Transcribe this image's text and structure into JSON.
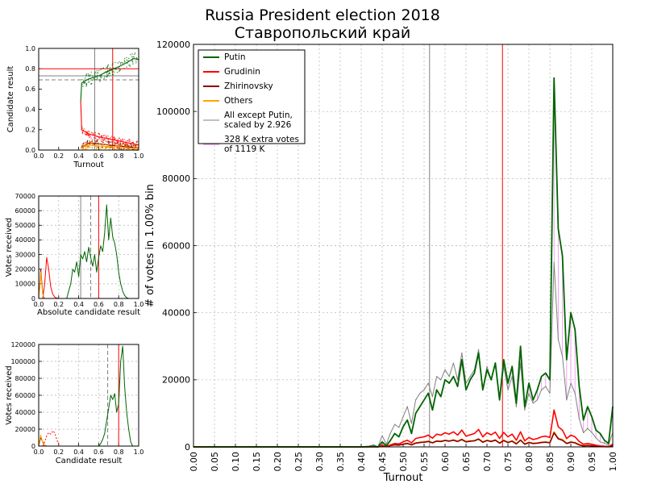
{
  "title": "Russia President election 2018",
  "subtitle": "Ставропольский край",
  "colors": {
    "putin": "#006400",
    "grudinin": "#ff0000",
    "zhirinovsky": "#8b0000",
    "others": "#ffa500",
    "scaled": "#808080",
    "extra": "#ee82ee",
    "marker_gray": "#808080",
    "marker_red": "#ff0000",
    "grid": "#b0b0b0"
  },
  "chart_data": [
    {
      "id": "main",
      "type": "line",
      "xlabel": "Turnout",
      "ylabel": "# of votes in 1.00% bin",
      "xlim": [
        0,
        1
      ],
      "ylim": [
        0,
        120000
      ],
      "xticks": [
        "0.00",
        "0.05",
        "0.10",
        "0.15",
        "0.20",
        "0.25",
        "0.30",
        "0.35",
        "0.40",
        "0.45",
        "0.50",
        "0.55",
        "0.60",
        "0.65",
        "0.70",
        "0.75",
        "0.80",
        "0.85",
        "0.90",
        "0.95",
        "1.00"
      ],
      "yticks": [
        "0",
        "20000",
        "40000",
        "60000",
        "80000",
        "100000",
        "120000"
      ],
      "grid": true,
      "legend_position": "top-left",
      "vlines": [
        {
          "x": 0.563,
          "color": "gray"
        },
        {
          "x": 0.737,
          "color": "red"
        }
      ],
      "x": [
        0.0,
        0.05,
        0.1,
        0.15,
        0.2,
        0.25,
        0.3,
        0.35,
        0.37,
        0.4,
        0.42,
        0.43,
        0.44,
        0.45,
        0.46,
        0.47,
        0.48,
        0.49,
        0.5,
        0.51,
        0.52,
        0.53,
        0.54,
        0.55,
        0.56,
        0.57,
        0.58,
        0.59,
        0.6,
        0.61,
        0.62,
        0.63,
        0.64,
        0.65,
        0.66,
        0.67,
        0.68,
        0.69,
        0.7,
        0.71,
        0.72,
        0.73,
        0.74,
        0.75,
        0.76,
        0.77,
        0.78,
        0.79,
        0.8,
        0.81,
        0.82,
        0.83,
        0.84,
        0.85,
        0.86,
        0.87,
        0.88,
        0.89,
        0.9,
        0.91,
        0.92,
        0.93,
        0.94,
        0.95,
        0.96,
        0.97,
        0.98,
        0.99,
        1.0
      ],
      "series": [
        {
          "name": "Putin",
          "key": "putin",
          "values": [
            0,
            0,
            0,
            0,
            0,
            0,
            0,
            0,
            0,
            0,
            100,
            200,
            0,
            1500,
            300,
            2000,
            4000,
            3000,
            6000,
            8000,
            4000,
            10000,
            12000,
            14000,
            16000,
            11000,
            17000,
            15000,
            20000,
            19000,
            21000,
            18000,
            26000,
            17000,
            20000,
            22000,
            28000,
            17000,
            23000,
            20000,
            25000,
            14000,
            26000,
            19000,
            24000,
            13000,
            30000,
            12000,
            19000,
            14000,
            17000,
            21000,
            22000,
            20000,
            110000,
            65000,
            57000,
            26000,
            40000,
            35000,
            18000,
            8000,
            12000,
            9000,
            5000,
            4000,
            2000,
            1000,
            12000
          ]
        },
        {
          "name": "Grudinin",
          "key": "grudinin",
          "values": [
            0,
            0,
            0,
            0,
            0,
            0,
            0,
            0,
            0,
            0,
            50,
            100,
            0,
            500,
            100,
            600,
            1000,
            900,
            1500,
            2000,
            1200,
            2500,
            2800,
            3000,
            3500,
            2600,
            3800,
            3500,
            4200,
            3800,
            4500,
            3500,
            5000,
            3200,
            3600,
            4000,
            5200,
            3000,
            4200,
            3600,
            4400,
            2500,
            4300,
            3000,
            3800,
            2000,
            4500,
            1800,
            2800,
            2200,
            2500,
            3000,
            3200,
            2800,
            11000,
            6000,
            5000,
            2500,
            3500,
            3000,
            1600,
            800,
            1000,
            800,
            500,
            300,
            200,
            100,
            800
          ]
        },
        {
          "name": "Zhirinovsky",
          "key": "zhirinovsky",
          "values": [
            0,
            0,
            0,
            0,
            0,
            0,
            0,
            0,
            0,
            0,
            20,
            50,
            0,
            300,
            80,
            400,
            600,
            500,
            800,
            1000,
            600,
            1100,
            1300,
            1400,
            1600,
            1200,
            1700,
            1600,
            1900,
            1700,
            2000,
            1600,
            2200,
            1500,
            1700,
            1800,
            2300,
            1400,
            1900,
            1600,
            2000,
            1100,
            1900,
            1300,
            1700,
            900,
            2000,
            800,
            1300,
            1000,
            1100,
            1300,
            1400,
            1200,
            4200,
            2400,
            2000,
            1000,
            1400,
            1200,
            600,
            300,
            400,
            300,
            200,
            100,
            80,
            40,
            300
          ]
        },
        {
          "name": "Others",
          "key": "others",
          "values": [
            0,
            0,
            0,
            0,
            0,
            0,
            0,
            0,
            0,
            0,
            20,
            60,
            0,
            350,
            90,
            450,
            700,
            600,
            900,
            1100,
            700,
            1200,
            1400,
            1500,
            1700,
            1300,
            1800,
            1700,
            2000,
            1800,
            2100,
            1700,
            2300,
            1600,
            1800,
            1900,
            2400,
            1500,
            2000,
            1700,
            2100,
            1200,
            2000,
            1400,
            1800,
            1000,
            2100,
            900,
            1400,
            1100,
            1200,
            1400,
            1500,
            1300,
            4500,
            2600,
            2200,
            1100,
            1500,
            1300,
            700,
            350,
            450,
            350,
            220,
            120,
            90,
            50,
            350
          ]
        },
        {
          "name": "All except Putin, scaled by 2.926",
          "key": "scaled",
          "values": [
            0,
            0,
            0,
            0,
            0,
            0,
            0,
            0,
            0,
            0,
            270,
            620,
            0,
            3350,
            790,
            4200,
            6700,
            5800,
            9000,
            12000,
            7000,
            14000,
            16000,
            17000,
            19000,
            15000,
            21000,
            20000,
            23000,
            21000,
            25000,
            20000,
            28000,
            19000,
            21000,
            23000,
            29000,
            17000,
            24000,
            20000,
            25000,
            14000,
            24000,
            17000,
            21000,
            12000,
            25000,
            11000,
            16000,
            13000,
            14000,
            17000,
            18000,
            16000,
            55000,
            32000,
            27000,
            14000,
            19000,
            16000,
            8400,
            4200,
            5500,
            4300,
            2700,
            1500,
            1100,
            560,
            4300
          ]
        }
      ],
      "legend": [
        {
          "key": "putin",
          "label": "Putin"
        },
        {
          "key": "grudinin",
          "label": "Grudinin"
        },
        {
          "key": "zhirinovsky",
          "label": "Zhirinovsky"
        },
        {
          "key": "others",
          "label": "Others"
        },
        {
          "key": "scaled",
          "label": "All except Putin,\nscaled by 2.926"
        },
        {
          "key": "extra",
          "label": "328 K extra votes\n of 1119 K"
        }
      ]
    },
    {
      "id": "scatter_turnout",
      "type": "scatter",
      "xlabel": "Turnout",
      "ylabel": "Candidate result",
      "xlim": [
        0,
        1
      ],
      "ylim": [
        0,
        1
      ],
      "xticks": [
        "0.0",
        "0.2",
        "0.4",
        "0.6",
        "0.8",
        "1.0"
      ],
      "yticks": [
        "0.0",
        "0.2",
        "0.4",
        "0.6",
        "0.8",
        "1.0"
      ],
      "grid": false,
      "hlines": [
        {
          "y": 0.8,
          "color": "red"
        },
        {
          "y": 0.73,
          "color": "gray",
          "dashed": false
        },
        {
          "y": 0.69,
          "color": "gray",
          "dashed": true
        }
      ],
      "vlines": [
        {
          "x": 0.56,
          "color": "gray"
        },
        {
          "x": 0.74,
          "color": "red"
        }
      ],
      "series": [
        {
          "name": "Putin",
          "key": "putin",
          "trend": [
            [
              0.42,
              0.48
            ],
            [
              0.43,
              0.66
            ],
            [
              0.5,
              0.7
            ],
            [
              0.6,
              0.73
            ],
            [
              0.7,
              0.78
            ],
            [
              0.8,
              0.82
            ],
            [
              0.88,
              0.86
            ],
            [
              0.95,
              0.9
            ],
            [
              1.0,
              0.89
            ]
          ]
        },
        {
          "name": "Grudinin",
          "key": "grudinin",
          "trend": [
            [
              0.42,
              0.48
            ],
            [
              0.43,
              0.2
            ],
            [
              0.5,
              0.16
            ],
            [
              0.6,
              0.13
            ],
            [
              0.7,
              0.11
            ],
            [
              0.8,
              0.09
            ],
            [
              0.9,
              0.07
            ],
            [
              1.0,
              0.05
            ]
          ]
        },
        {
          "name": "Zhirinovsky",
          "key": "zhirinovsky",
          "trend": [
            [
              0.42,
              0.02
            ],
            [
              0.5,
              0.07
            ],
            [
              0.6,
              0.06
            ],
            [
              0.7,
              0.05
            ],
            [
              0.8,
              0.04
            ],
            [
              0.9,
              0.03
            ],
            [
              1.0,
              0.02
            ]
          ]
        },
        {
          "name": "Others",
          "key": "others",
          "trend": [
            [
              0.42,
              0.02
            ],
            [
              0.5,
              0.05
            ],
            [
              0.6,
              0.04
            ],
            [
              0.7,
              0.035
            ],
            [
              0.8,
              0.03
            ],
            [
              0.9,
              0.02
            ],
            [
              1.0,
              0.015
            ]
          ]
        }
      ]
    },
    {
      "id": "absolute_hist",
      "type": "line",
      "xlabel": "Absolute candidate result",
      "ylabel": "Votes received",
      "xlim": [
        0,
        1
      ],
      "ylim": [
        0,
        70000
      ],
      "xticks": [
        "0.0",
        "0.2",
        "0.4",
        "0.6",
        "0.8",
        "1.0"
      ],
      "yticks": [
        "0",
        "10000",
        "20000",
        "30000",
        "40000",
        "50000",
        "60000",
        "70000"
      ],
      "grid": true,
      "vlines": [
        {
          "x": 0.42,
          "color": "gray"
        },
        {
          "x": 0.52,
          "color": "gray",
          "dashed": true
        },
        {
          "x": 0.6,
          "color": "red"
        }
      ],
      "series": [
        {
          "name": "Putin",
          "key": "putin",
          "x": [
            0.28,
            0.3,
            0.32,
            0.34,
            0.36,
            0.38,
            0.4,
            0.42,
            0.44,
            0.46,
            0.48,
            0.5,
            0.52,
            0.54,
            0.56,
            0.58,
            0.6,
            0.62,
            0.64,
            0.66,
            0.68,
            0.7,
            0.72,
            0.74,
            0.76,
            0.78,
            0.8,
            0.82,
            0.84,
            0.86,
            0.88,
            0.9
          ],
          "values": [
            0,
            5000,
            10000,
            20000,
            18000,
            25000,
            15000,
            30000,
            27000,
            32000,
            25000,
            35000,
            28000,
            22000,
            30000,
            18000,
            28000,
            36000,
            32000,
            45000,
            64000,
            40000,
            55000,
            42000,
            38000,
            30000,
            18000,
            10000,
            5000,
            2000,
            500,
            0
          ]
        },
        {
          "name": "Grudinin",
          "key": "grudinin",
          "x": [
            0.04,
            0.06,
            0.08,
            0.1,
            0.12,
            0.14,
            0.16,
            0.18,
            0.2
          ],
          "values": [
            0,
            10000,
            28000,
            20000,
            8000,
            3000,
            1000,
            300,
            0
          ]
        },
        {
          "name": "Zhirinovsky",
          "key": "zhirinovsky",
          "x": [
            0.0,
            0.01,
            0.02,
            0.03,
            0.04,
            0.05,
            0.06
          ],
          "values": [
            0,
            8000,
            20000,
            12000,
            4000,
            1000,
            0
          ]
        },
        {
          "name": "Others",
          "key": "others",
          "x": [
            0.0,
            0.01,
            0.02,
            0.03,
            0.04,
            0.05,
            0.06
          ],
          "values": [
            0,
            6000,
            18000,
            10000,
            3000,
            800,
            0
          ]
        }
      ]
    },
    {
      "id": "result_hist",
      "type": "line",
      "xlabel": "Candidate result",
      "ylabel": "Votes received",
      "xlim": [
        0,
        1
      ],
      "ylim": [
        0,
        120000
      ],
      "xticks": [
        "0.0",
        "0.2",
        "0.4",
        "0.6",
        "0.8",
        "1.0"
      ],
      "yticks": [
        "0",
        "20000",
        "40000",
        "60000",
        "80000",
        "100000",
        "120000"
      ],
      "grid": true,
      "vlines": [
        {
          "x": 0.69,
          "color": "gray",
          "dashed": true
        },
        {
          "x": 0.8,
          "color": "red"
        }
      ],
      "series": [
        {
          "name": "Putin",
          "key": "putin",
          "x": [
            0.6,
            0.62,
            0.64,
            0.66,
            0.68,
            0.7,
            0.72,
            0.74,
            0.76,
            0.78,
            0.8,
            0.82,
            0.84,
            0.86,
            0.88,
            0.9,
            0.92,
            0.94
          ],
          "values": [
            0,
            3000,
            8000,
            15000,
            30000,
            45000,
            60000,
            55000,
            62000,
            40000,
            50000,
            100000,
            118000,
            70000,
            40000,
            20000,
            5000,
            0
          ]
        },
        {
          "name": "Grudinin",
          "key": "grudinin",
          "x": [
            0.04,
            0.06,
            0.08,
            0.1,
            0.12,
            0.14,
            0.16,
            0.18,
            0.2,
            0.22
          ],
          "values": [
            0,
            5000,
            12000,
            16000,
            14000,
            18000,
            16000,
            8000,
            2000,
            0
          ]
        },
        {
          "name": "Zhirinovsky",
          "key": "zhirinovsky",
          "x": [
            0.0,
            0.02,
            0.04,
            0.06,
            0.08
          ],
          "values": [
            0,
            10000,
            5000,
            1000,
            0
          ]
        },
        {
          "name": "Others",
          "key": "others",
          "x": [
            0.0,
            0.02,
            0.04,
            0.06,
            0.08
          ],
          "values": [
            0,
            13000,
            4000,
            800,
            0
          ]
        }
      ]
    }
  ]
}
